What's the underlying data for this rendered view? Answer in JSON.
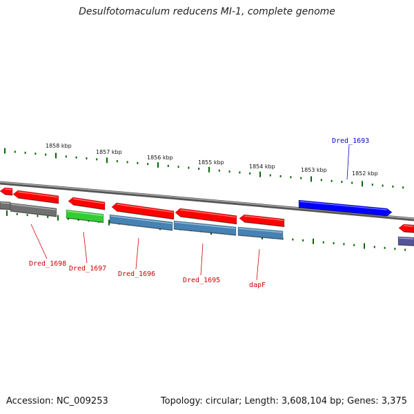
{
  "title": "Desulfotomaculum reducens MI-1, complete genome",
  "footer": {
    "accession": "Accession: NC_009253",
    "summary": "Topology: circular; Length: 3,608,104 bp; Genes: 3,375"
  },
  "colors": {
    "forward_gene": "#ff0000",
    "reverse_gene": "#4682b4",
    "highlight_gene": "#0000ff",
    "rna_gene": "#33cc33",
    "pseudo_gene": "#707070",
    "purple_gene": "#555599",
    "tick": "#006600",
    "label_forward": "#cc0000",
    "label_highlight": "#0000cc"
  },
  "scale_labels": [
    "1858 kbp",
    "1857 kbp",
    "1856 kbp",
    "1855 kbp",
    "1854 kbp",
    "1853 kbp",
    "1852 kbp"
  ],
  "gene_labels": [
    {
      "name": "Dred_1698",
      "strand": "reverse"
    },
    {
      "name": "Dred_1697",
      "strand": "reverse"
    },
    {
      "name": "Dred_1696",
      "strand": "reverse"
    },
    {
      "name": "Dred_1695",
      "strand": "reverse"
    },
    {
      "name": "dapF",
      "strand": "reverse"
    },
    {
      "name": "Dred_1693",
      "strand": "forward"
    }
  ]
}
